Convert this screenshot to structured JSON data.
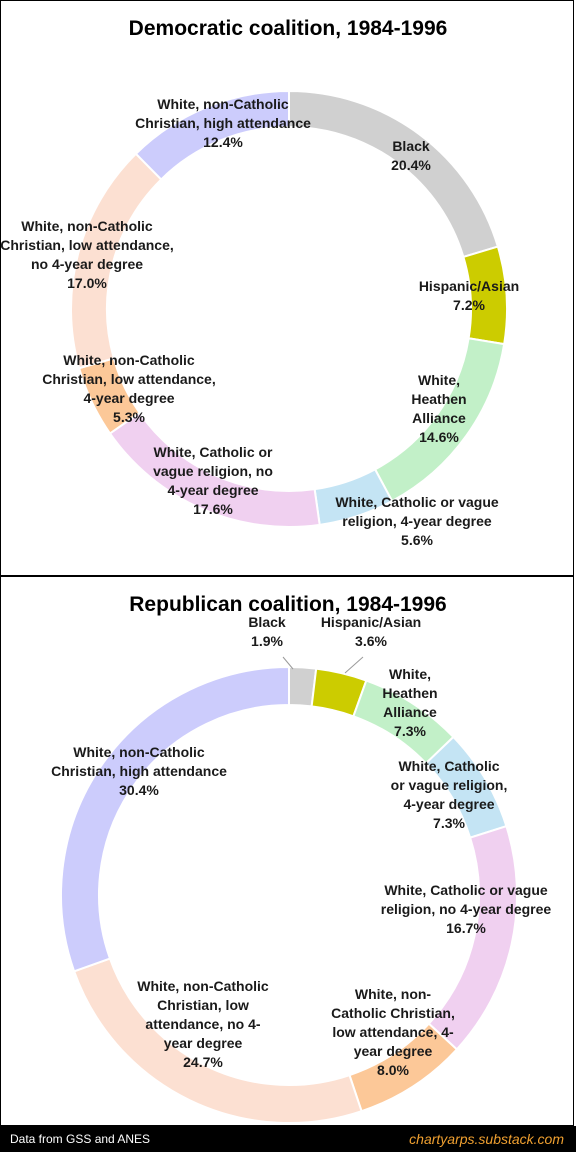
{
  "chart_data": [
    {
      "type": "pie",
      "donut": true,
      "title": "Democratic coalition, 1984-1996",
      "slices": [
        {
          "label": [
            "Black",
            "20.4%"
          ],
          "value": 20.4,
          "color": "#d0d0d0"
        },
        {
          "label": [
            "Hispanic/Asian",
            "7.2%"
          ],
          "value": 7.2,
          "color": "#cccc00"
        },
        {
          "label": [
            "White,",
            "Heathen",
            "Alliance",
            "14.6%"
          ],
          "value": 14.6,
          "color": "#c2f0c8"
        },
        {
          "label": [
            "White, Catholic or vague",
            "religion, 4-year degree",
            "5.6%"
          ],
          "value": 5.6,
          "color": "#c4e4f4"
        },
        {
          "label": [
            "White, Catholic or",
            "vague religion, no",
            "4-year degree",
            "17.6%"
          ],
          "value": 17.6,
          "color": "#f0d0f0"
        },
        {
          "label": [
            "White, non-Catholic",
            "Christian, low attendance,",
            "4-year degree",
            "5.3%"
          ],
          "value": 5.3,
          "color": "#fcc898"
        },
        {
          "label": [
            "White, non-Catholic",
            "Christian, low attendance,",
            "no 4-year degree",
            "17.0%"
          ],
          "value": 17.0,
          "color": "#fce0d2"
        },
        {
          "label": [
            "White, non-Catholic",
            "Christian, high attendance",
            "12.4%"
          ],
          "value": 12.4,
          "color": "#ccccfc"
        }
      ]
    },
    {
      "type": "pie",
      "donut": true,
      "title": "Republican coalition, 1984-1996",
      "slices": [
        {
          "label": [
            "Black",
            "1.9%"
          ],
          "value": 1.9,
          "color": "#d0d0d0"
        },
        {
          "label": [
            "Hispanic/Asian",
            "3.6%"
          ],
          "value": 3.6,
          "color": "#cccc00"
        },
        {
          "label": [
            "White,",
            "Heathen",
            "Alliance",
            "7.3%"
          ],
          "value": 7.3,
          "color": "#c2f0c8"
        },
        {
          "label": [
            "White, Catholic",
            "or vague religion,",
            "4-year degree",
            "7.3%"
          ],
          "value": 7.3,
          "color": "#c4e4f4"
        },
        {
          "label": [
            "White, Catholic or vague",
            "religion, no 4-year degree",
            "16.7%"
          ],
          "value": 16.7,
          "color": "#f0d0f0"
        },
        {
          "label": [
            "White, non-",
            "Catholic Christian,",
            "low attendance, 4-",
            "year degree",
            "8.0%"
          ],
          "value": 8.0,
          "color": "#fcc898"
        },
        {
          "label": [
            "White, non-Catholic",
            "Christian, low",
            "attendance, no 4-",
            "year degree",
            "24.7%"
          ],
          "value": 24.7,
          "color": "#fce0d2"
        },
        {
          "label": [
            "White, non-Catholic",
            "Christian, high attendance",
            "30.4%"
          ],
          "value": 30.4,
          "color": "#ccccfc"
        }
      ]
    }
  ],
  "footer": {
    "source": "Data from GSS and ANES",
    "site": "chartyarps.substack.com"
  }
}
